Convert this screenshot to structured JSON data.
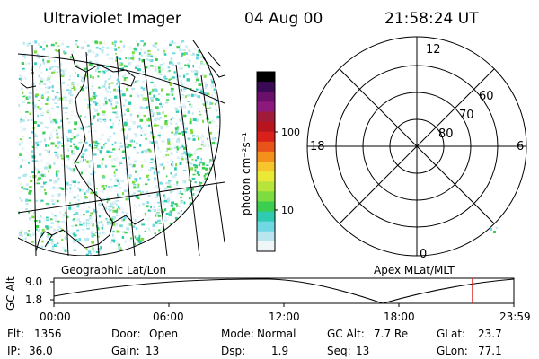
{
  "header": {
    "title": "Ultraviolet Imager",
    "date": "04 Aug 00",
    "time": "21:58:24 UT"
  },
  "colorbar": {
    "label": "photon cm⁻²s⁻¹",
    "ticks": [
      "100",
      "10"
    ],
    "colors": [
      "#000000",
      "#3b0a55",
      "#6a0f6a",
      "#8c1a7e",
      "#a01b3a",
      "#b8141e",
      "#d9201a",
      "#e8531a",
      "#f3911c",
      "#f7c52c",
      "#e9e936",
      "#b8e53b",
      "#7ddc3f",
      "#3ccf4f",
      "#2ecbb0",
      "#6fd8e2",
      "#b9e6ee",
      "#eef6f8"
    ]
  },
  "polar": {
    "mlt_labels": [
      "12",
      "18",
      "6",
      "0"
    ],
    "lat_labels": [
      "60",
      "70",
      "80"
    ]
  },
  "map_labels": {
    "geographic": "Geographic Lat/Lon",
    "apex": "Apex MLat/MLT"
  },
  "gc_plot": {
    "ylabel": "GC Alt",
    "yticks": [
      "9.0",
      "1.8"
    ],
    "xticks": [
      "00:00",
      "06:00",
      "12:00",
      "18:00",
      "23:59"
    ],
    "current_time_marker": "21:58:24",
    "marker_color": "#dd2222"
  },
  "footer": {
    "row1": [
      {
        "label": "Flt:",
        "value": "1356"
      },
      {
        "label": "Door:",
        "value": "Open"
      },
      {
        "label": "Mode:",
        "value": "Normal"
      },
      {
        "label": "GC Alt:",
        "value": "7.7 Re"
      },
      {
        "label": "GLat:",
        "value": "23.7"
      }
    ],
    "row2": [
      {
        "label": "IP:",
        "value": "36.0"
      },
      {
        "label": "Gain:",
        "value": "13"
      },
      {
        "label": "Dsp:",
        "value": "1.9"
      },
      {
        "label": "Seq:",
        "value": "13"
      },
      {
        "label": "GLon:",
        "value": "77.1"
      }
    ]
  }
}
